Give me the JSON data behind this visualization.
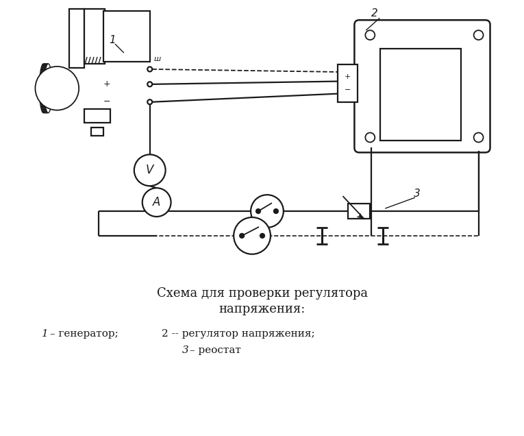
{
  "title_line1": "Схема для проверки регулятора",
  "title_line2": "напряжения:",
  "legend_line1": "1 – генератор;   2 -- регулятор напряжения;",
  "legend_line2": "3 – реостат",
  "bg_color": "#ffffff",
  "line_color": "#1a1a1a",
  "lw": 1.6,
  "font_size_title": 13,
  "font_size_legend": 11,
  "font_size_label": 11
}
